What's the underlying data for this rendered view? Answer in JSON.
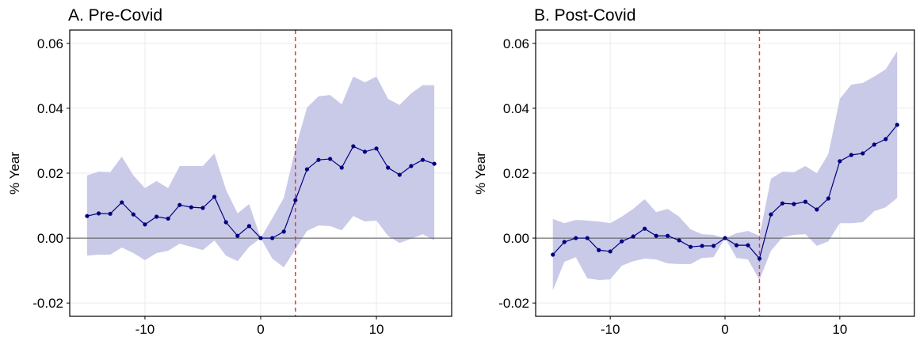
{
  "chart_data": [
    {
      "type": "line",
      "title": "A. Pre-Covid",
      "y_label": "% Year",
      "x": [
        -15,
        -14,
        -13,
        -12,
        -11,
        -10,
        -9,
        -8,
        -7,
        -6,
        -5,
        -4,
        -3,
        -2,
        -1,
        0,
        1,
        2,
        3,
        4,
        5,
        6,
        7,
        8,
        9,
        10,
        11,
        12,
        13,
        14,
        15
      ],
      "values": [
        0.0068,
        0.0076,
        0.0075,
        0.011,
        0.0073,
        0.0042,
        0.0066,
        0.006,
        0.0102,
        0.0095,
        0.0093,
        0.0127,
        0.0049,
        0.0007,
        0.0037,
        0,
        0,
        0.002,
        0.0117,
        0.0212,
        0.0241,
        0.0244,
        0.0217,
        0.0283,
        0.0266,
        0.0276,
        0.0217,
        0.0195,
        0.0222,
        0.0241,
        0.0229
      ],
      "upper": [
        0.0193,
        0.0205,
        0.0203,
        0.0251,
        0.0193,
        0.0154,
        0.0176,
        0.0154,
        0.0222,
        0.0222,
        0.0222,
        0.0261,
        0.0149,
        0.0076,
        0.0105,
        0,
        0.0061,
        0.0124,
        0.0276,
        0.0402,
        0.0437,
        0.0441,
        0.0412,
        0.0498,
        0.048,
        0.0498,
        0.0429,
        0.041,
        0.0446,
        0.0471,
        0.0471
      ],
      "lower": [
        -0.0054,
        -0.0051,
        -0.0051,
        -0.0029,
        -0.0046,
        -0.0068,
        -0.0046,
        -0.0039,
        -0.0017,
        -0.0027,
        -0.0037,
        -0.0007,
        -0.0054,
        -0.0071,
        -0.0027,
        0,
        -0.0063,
        -0.009,
        -0.0034,
        0.0022,
        0.0039,
        0.0037,
        0.0024,
        0.0068,
        0.0051,
        0.0054,
        0.0007,
        -0.0015,
        -0.0002,
        0.0012,
        -0.0007
      ],
      "color": "#00007f",
      "band_color": "#c9c9e8",
      "vline": 3,
      "vline_color": "#ee3333",
      "hline": 0,
      "xlim": [
        -16.5,
        16.5
      ],
      "ylim": [
        -0.0241,
        0.0641
      ],
      "xticks": [
        -10,
        0,
        10
      ],
      "yticks": [
        -0.02,
        {
          "value": 0,
          "label": "0.00"
        },
        0.02,
        0.04,
        0.06
      ],
      "grid": true
    },
    {
      "type": "line",
      "title": "B. Post-Covid",
      "y_label": "% Year",
      "x": [
        -15,
        -14,
        -13,
        -12,
        -11,
        -10,
        -9,
        -8,
        -7,
        -6,
        -5,
        -4,
        -3,
        -2,
        -1,
        0,
        1,
        2,
        3,
        4,
        5,
        6,
        7,
        8,
        9,
        10,
        11,
        12,
        13,
        14,
        15
      ],
      "values": [
        -0.0051,
        -0.0012,
        0,
        0,
        -0.0037,
        -0.0041,
        -0.001,
        0.0005,
        0.0029,
        0.0007,
        0.0007,
        -0.0007,
        -0.0027,
        -0.0024,
        -0.0024,
        0,
        -0.0022,
        -0.0022,
        -0.0063,
        0.0073,
        0.0107,
        0.0105,
        0.0112,
        0.0088,
        0.0122,
        0.0237,
        0.0256,
        0.0261,
        0.0288,
        0.0305,
        0.0349
      ],
      "upper": [
        0.0059,
        0.0046,
        0.0056,
        0.0054,
        0.0051,
        0.0046,
        0.0066,
        0.009,
        0.012,
        0.008,
        0.009,
        0.0066,
        0.0027,
        0.0012,
        0.001,
        0,
        0.0015,
        0.0022,
        0.0007,
        0.0183,
        0.0205,
        0.0203,
        0.0222,
        0.02,
        0.0259,
        0.0429,
        0.0473,
        0.0478,
        0.0498,
        0.052,
        0.0576
      ],
      "lower": [
        -0.0161,
        -0.0073,
        -0.0059,
        -0.0124,
        -0.0129,
        -0.0127,
        -0.0085,
        -0.0071,
        -0.0063,
        -0.0066,
        -0.0078,
        -0.008,
        -0.008,
        -0.0061,
        -0.0059,
        0,
        -0.0061,
        -0.0066,
        -0.0129,
        -0.0039,
        0.0002,
        0.001,
        0.0012,
        -0.0024,
        -0.001,
        0.0046,
        0.0046,
        0.0049,
        0.0083,
        0.0095,
        0.0124
      ],
      "color": "#00007f",
      "band_color": "#c9c9e8",
      "vline": 3,
      "vline_color": "#ee3333",
      "hline": 0,
      "xlim": [
        -16.5,
        16.5
      ],
      "ylim": [
        -0.0241,
        0.0641
      ],
      "xticks": [
        -10,
        0,
        10
      ],
      "yticks": [
        -0.02,
        {
          "value": 0,
          "label": "0.00"
        },
        0.02,
        0.04,
        0.06
      ],
      "grid": true
    }
  ]
}
